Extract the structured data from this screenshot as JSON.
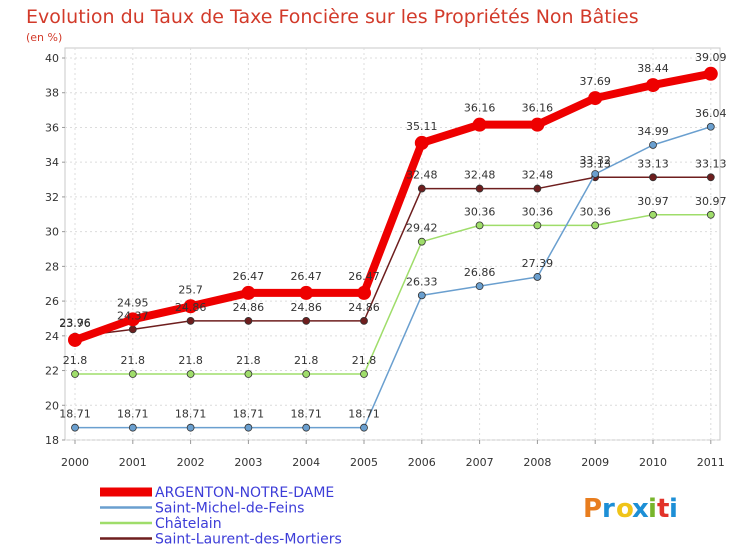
{
  "chart_data": {
    "type": "line",
    "title": "Evolution du Taux de Taxe Foncière sur les Propriétés Non Bâties",
    "subtitle": "(en %)",
    "categories": [
      "2000",
      "2001",
      "2002",
      "2003",
      "2004",
      "2005",
      "2006",
      "2007",
      "2008",
      "2009",
      "2010",
      "2011"
    ],
    "ylim": [
      18,
      40
    ],
    "yticks": [
      18,
      20,
      22,
      24,
      26,
      28,
      30,
      32,
      34,
      36,
      38,
      40
    ],
    "grid": true,
    "legend_position": "bottom-left",
    "series": [
      {
        "name": "Saint-Laurent-des-Mortiers",
        "color": "#6e1e1e",
        "labels": [
          "23.96",
          "24.37",
          "24.86",
          "24.86",
          "24.86",
          "24.86",
          "32.48",
          "32.48",
          "32.48",
          "33.13",
          "33.13",
          "33.13"
        ],
        "values": [
          23.96,
          24.37,
          24.86,
          24.86,
          24.86,
          24.86,
          32.48,
          32.48,
          32.48,
          33.13,
          33.13,
          33.13
        ]
      },
      {
        "name": "Châtelain",
        "color": "#9fdd6a",
        "labels": [
          "21.8",
          "21.8",
          "21.8",
          "21.8",
          "21.8",
          "21.8",
          "29.42",
          "30.36",
          "30.36",
          "30.36",
          "30.97",
          "30.97"
        ],
        "values": [
          21.8,
          21.8,
          21.8,
          21.8,
          21.8,
          21.8,
          29.42,
          30.36,
          30.36,
          30.36,
          30.97,
          30.97
        ]
      },
      {
        "name": "Saint-Michel-de-Feins",
        "color": "#6a9fcf",
        "labels": [
          "18.71",
          "18.71",
          "18.71",
          "18.71",
          "18.71",
          "18.71",
          "26.33",
          "26.86",
          "27.39",
          "33.32",
          "34.99",
          "36.04"
        ],
        "values": [
          18.71,
          18.71,
          18.71,
          18.71,
          18.71,
          18.71,
          26.33,
          26.86,
          27.39,
          33.32,
          34.99,
          36.04
        ]
      },
      {
        "name": "ARGENTON-NOTRE-DAME",
        "color": "#ee0000",
        "labels": [
          "23.76",
          "24.95",
          "25.7",
          "26.47",
          "26.47",
          "26.47",
          "35.11",
          "36.16",
          "36.16",
          "37.69",
          "38.44",
          "39.09"
        ],
        "values": [
          23.76,
          24.95,
          25.7,
          26.47,
          26.47,
          26.47,
          35.11,
          36.16,
          36.16,
          37.69,
          38.44,
          39.09
        ]
      }
    ],
    "legend": [
      "ARGENTON-NOTRE-DAME",
      "Saint-Michel-de-Feins",
      "Châtelain",
      "Saint-Laurent-des-Mortiers"
    ]
  },
  "branding": {
    "logo_text": "Proxiti",
    "logo_letters": [
      "P",
      "r",
      "o",
      "x",
      "i",
      "t",
      "i"
    ],
    "logo_colors": [
      "#e87d1e",
      "#1d8fd6",
      "#f0c419",
      "#1d8fd6",
      "#78b52b",
      "#e2332a",
      "#1d8fd6"
    ]
  }
}
